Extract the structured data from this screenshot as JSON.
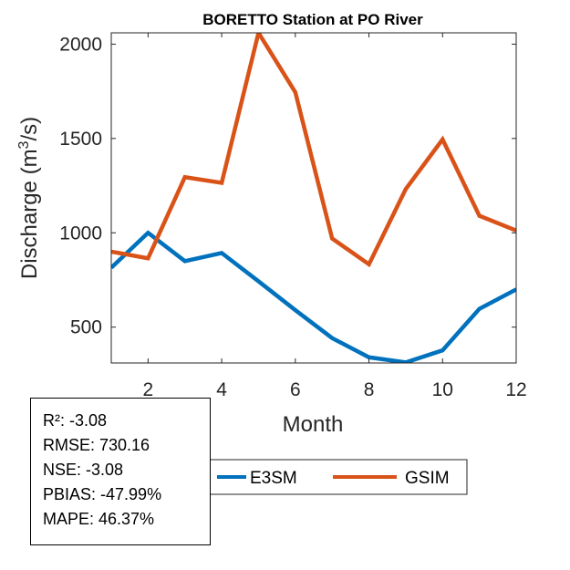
{
  "chart_data": {
    "type": "line",
    "title": "BORETTO  Station at  PO  River",
    "xlabel": "Month",
    "ylabel_main": "Discharge (m",
    "ylabel_sup": "3",
    "ylabel_end": "/s)",
    "xlim": [
      1,
      12
    ],
    "ylim": [
      310,
      2060
    ],
    "xticks": [
      "2",
      "4",
      "6",
      "8",
      "10",
      "12"
    ],
    "yticks": [
      "500",
      "1000",
      "1500",
      "2000"
    ],
    "x": [
      1,
      2,
      3,
      4,
      5,
      6,
      7,
      8,
      9,
      10,
      11,
      12
    ],
    "series": [
      {
        "name": "E3SM",
        "color": "#0072BD",
        "values": [
          815,
          1000,
          850,
          893,
          743,
          590,
          442,
          340,
          313,
          377,
          597,
          700
        ]
      },
      {
        "name": "GSIM",
        "color": "#D95319",
        "values": [
          900,
          865,
          1295,
          1265,
          2060,
          1745,
          970,
          833,
          1232,
          1495,
          1090,
          1012
        ]
      }
    ],
    "legend": "bottom-center",
    "grid": false
  },
  "stats": {
    "r2": "R²: -3.08",
    "rmse": "RMSE: 730.16",
    "nse": "NSE: -3.08",
    "pbias": "PBIAS: -47.99%",
    "mape": "MAPE: 46.37%"
  }
}
